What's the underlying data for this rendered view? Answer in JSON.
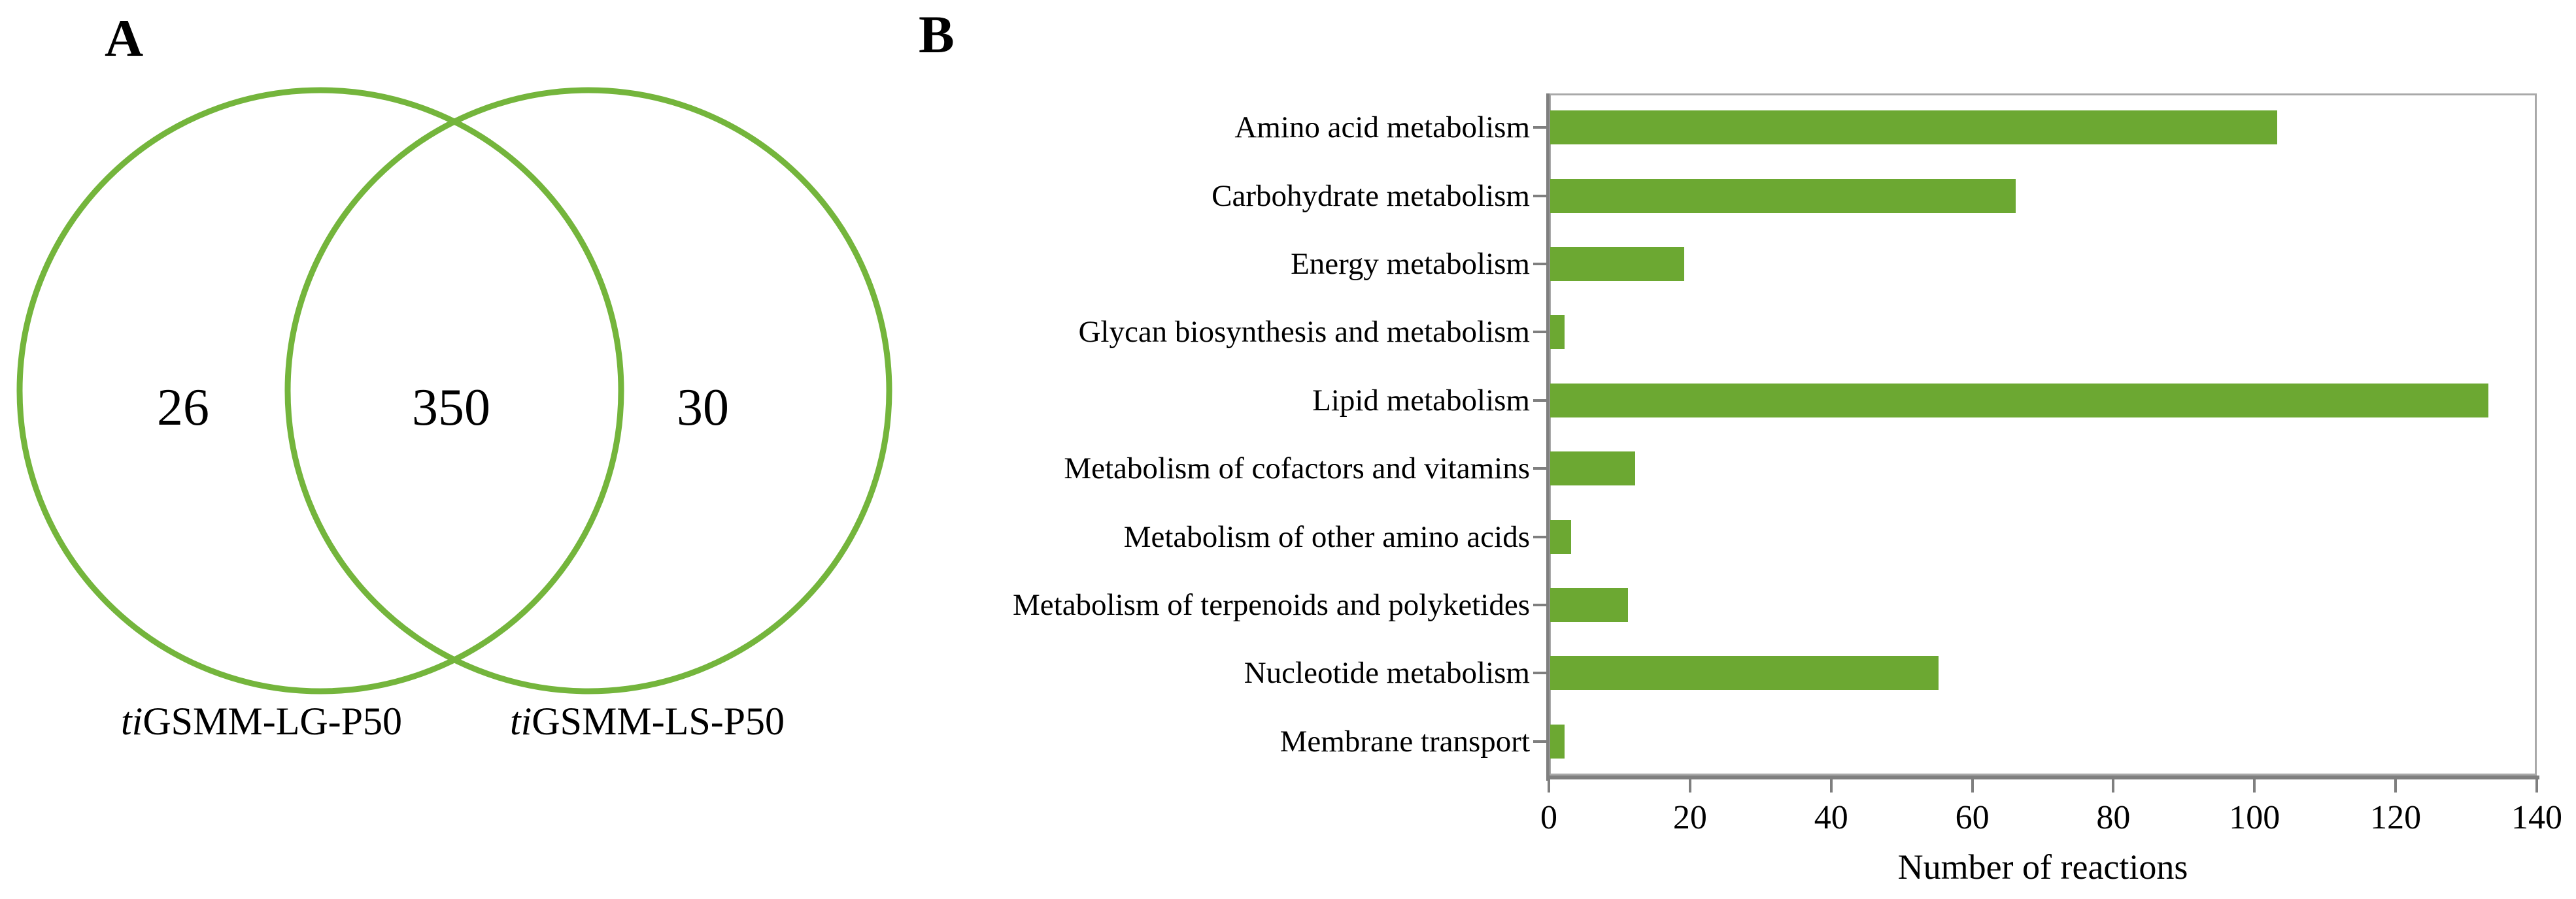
{
  "panel_a": {
    "label": "A"
  },
  "panel_b": {
    "label": "B"
  },
  "chart_data": [
    {
      "type": "venn",
      "panel": "A",
      "sets": [
        {
          "italic": "ti",
          "text": "GSMM-LG-P50"
        },
        {
          "italic": "ti",
          "text": "GSMM-LS-P50"
        }
      ],
      "left_only": 26,
      "intersection": 350,
      "right_only": 30,
      "circle_color": "#74b53c"
    },
    {
      "type": "bar",
      "panel": "B",
      "orientation": "horizontal",
      "categories": [
        "Amino acid metabolism",
        "Carbohydrate metabolism",
        "Energy metabolism",
        "Glycan biosynthesis and metabolism",
        "Lipid metabolism",
        "Metabolism of cofactors and vitamins",
        "Metabolism of other amino acids",
        "Metabolism of terpenoids and polyketides",
        "Nucleotide metabolism",
        "Membrane transport"
      ],
      "values": [
        103,
        66,
        19,
        2,
        133,
        12,
        3,
        11,
        55,
        2
      ],
      "xlabel": "Number of reactions",
      "xlim": [
        0,
        140
      ],
      "xticks": [
        0,
        20,
        40,
        60,
        80,
        100,
        120,
        140
      ],
      "grid": false,
      "legend": false,
      "bar_color": "#6ca832",
      "axis_color": "#7f7f7f",
      "frame_color": "#a9a9a9"
    }
  ]
}
